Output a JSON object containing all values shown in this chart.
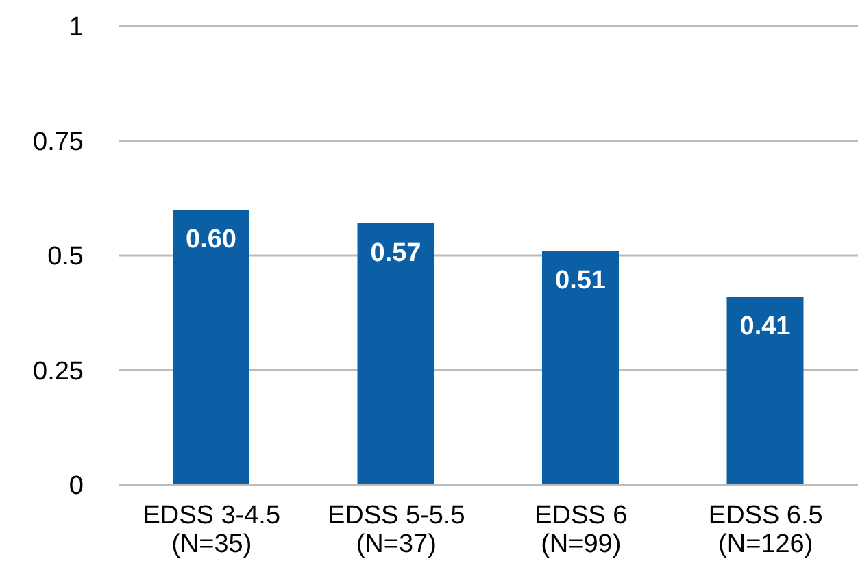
{
  "chart_data": {
    "type": "bar",
    "categories": [
      "EDSS 3-4.5 (N=35)",
      "EDSS 5-5.5 (N=37)",
      "EDSS 6 (N=99)",
      "EDSS 6.5 (N=126)"
    ],
    "values": [
      0.6,
      0.57,
      0.51,
      0.41
    ],
    "value_labels": [
      "0.60",
      "0.57",
      "0.51",
      "0.41"
    ],
    "color": "#0b5fa5",
    "ylim": [
      0,
      1
    ],
    "yticks": [
      0,
      0.25,
      0.5,
      0.75,
      1
    ],
    "grid": "y",
    "legend": false
  }
}
